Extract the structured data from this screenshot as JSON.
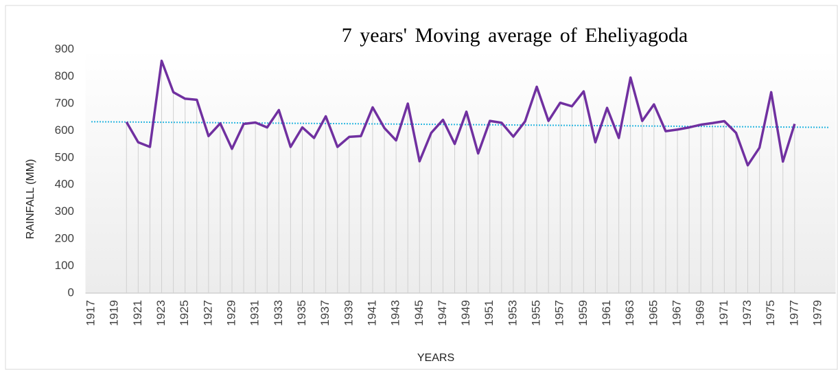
{
  "chart_data": {
    "type": "line",
    "title": "7 years' Moving average of  Eheliyagoda",
    "x_label": "YEARS",
    "y_label": "RAINFALL (MM)",
    "categories": [
      "1917",
      null,
      "1919",
      null,
      "1921",
      null,
      "1923",
      null,
      "1925",
      null,
      "1927",
      null,
      "1929",
      null,
      "1931",
      null,
      "1933",
      null,
      "1935",
      null,
      "1937",
      null,
      "1939",
      null,
      "1941",
      null,
      "1943",
      null,
      "1945",
      null,
      "1947",
      null,
      "1949",
      null,
      "1951",
      null,
      "1953",
      null,
      "1955",
      null,
      "1957",
      null,
      "1959",
      null,
      "1961",
      null,
      "1963",
      null,
      "1965",
      null,
      "1967",
      null,
      "1969",
      null,
      "1971",
      null,
      "1973",
      null,
      "1975",
      null,
      "1977",
      null,
      "1979",
      null
    ],
    "series": [
      {
        "name": "7 years' Moving average",
        "color": "#7030a0",
        "values": [
          null,
          null,
          null,
          632,
          557,
          540,
          858,
          742,
          718,
          714,
          580,
          627,
          533,
          625,
          630,
          612,
          676,
          540,
          612,
          573,
          653,
          540,
          577,
          580,
          686,
          610,
          564,
          700,
          487,
          592,
          640,
          551,
          670,
          516,
          636,
          629,
          578,
          634,
          762,
          636,
          703,
          690,
          745,
          557,
          684,
          573,
          796,
          636,
          697,
          598,
          604,
          612,
          622,
          628,
          635,
          592,
          472,
          537,
          742,
          486,
          625,
          null,
          null,
          null
        ]
      }
    ],
    "trendline": {
      "color": "#29b6e0",
      "start": 633,
      "end": 612
    },
    "drop_lines": true,
    "drop_line_color": "#d0d0d0",
    "ylim": [
      0,
      900
    ],
    "yticks": [
      0,
      100,
      200,
      300,
      400,
      500,
      600,
      700,
      800,
      900
    ],
    "grid": false
  }
}
